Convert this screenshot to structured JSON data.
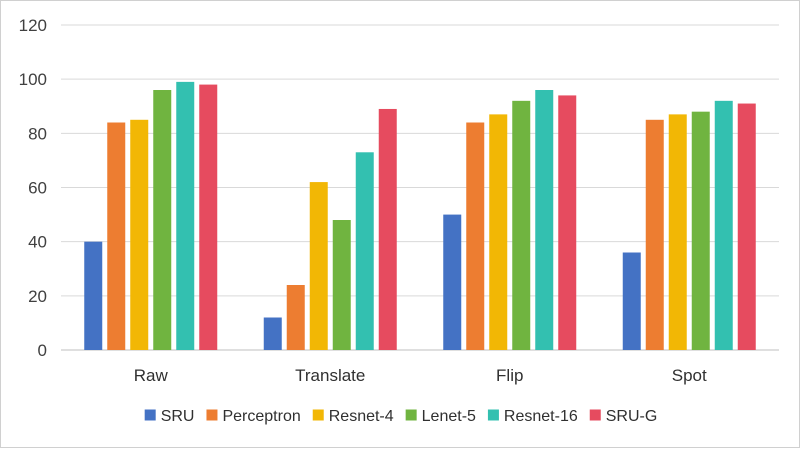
{
  "chart_data": {
    "type": "bar",
    "title": "",
    "xlabel": "",
    "ylabel": "",
    "ylim": [
      0,
      120
    ],
    "yticks": [
      0,
      20,
      40,
      60,
      80,
      100,
      120
    ],
    "grid": true,
    "legend_position": "bottom",
    "categories": [
      "Raw",
      "Translate",
      "Flip",
      "Spot"
    ],
    "series": [
      {
        "name": "SRU",
        "color": "#4472c4",
        "values": [
          40,
          12,
          50,
          36
        ]
      },
      {
        "name": "Perceptron",
        "color": "#ed7d31",
        "values": [
          84,
          24,
          84,
          85
        ]
      },
      {
        "name": "Resnet-4",
        "color": "#f2b705",
        "values": [
          85,
          62,
          87,
          87
        ]
      },
      {
        "name": "Lenet-5",
        "color": "#70b440",
        "values": [
          96,
          48,
          92,
          88
        ]
      },
      {
        "name": "Resnet-16",
        "color": "#33c0b0",
        "values": [
          99,
          73,
          96,
          92
        ]
      },
      {
        "name": "SRU-G",
        "color": "#e64b5f",
        "values": [
          98,
          89,
          94,
          91
        ]
      }
    ]
  }
}
